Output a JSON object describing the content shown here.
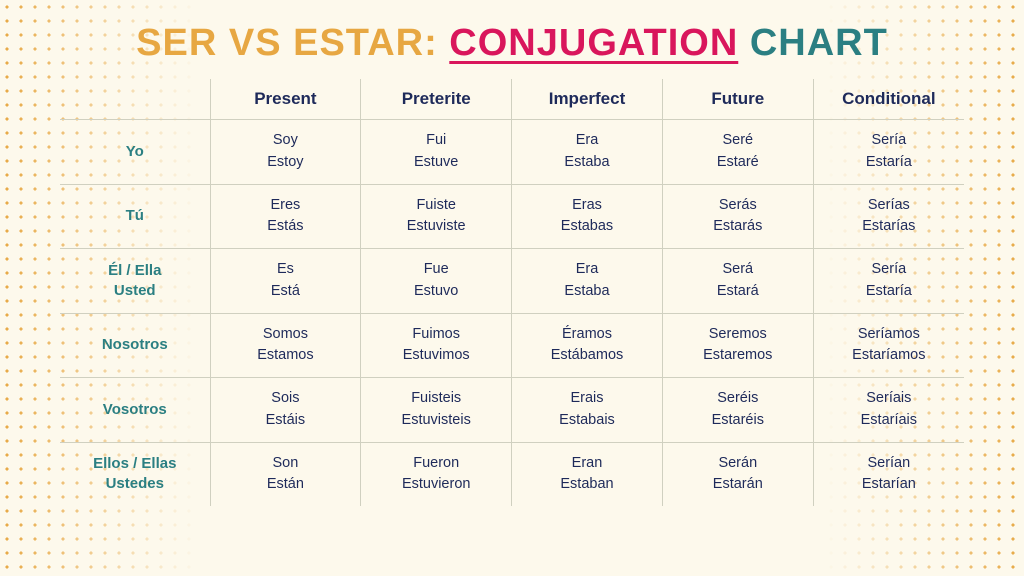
{
  "title": {
    "part1": "SER VS ESTAR: ",
    "part2": "CONJUGATION",
    "part3": " CHART"
  },
  "styling": {
    "background_color": "#fdf9ec",
    "dot_color": "#e7a742",
    "title_color_1": "#e7a742",
    "title_color_2": "#d9165c",
    "title_color_3": "#2b7f82",
    "title_fontsize": 38,
    "header_text_color": "#1e2a5a",
    "header_fontsize": 17,
    "rowheader_text_color": "#2b7f82",
    "rowheader_fontsize": 15,
    "cell_text_color": "#1e2a5a",
    "cell_fontsize": 14.5,
    "grid_color": "#d0d0c0",
    "table_type": "conjugation-grid"
  },
  "columns": [
    "Present",
    "Preterite",
    "Imperfect",
    "Future",
    "Conditional"
  ],
  "rows": [
    {
      "label": "Yo",
      "cells": [
        [
          "Soy",
          "Estoy"
        ],
        [
          "Fui",
          "Estuve"
        ],
        [
          "Era",
          "Estaba"
        ],
        [
          "Seré",
          "Estaré"
        ],
        [
          "Sería",
          "Estaría"
        ]
      ]
    },
    {
      "label": "Tú",
      "cells": [
        [
          "Eres",
          "Estás"
        ],
        [
          "Fuiste",
          "Estuviste"
        ],
        [
          "Eras",
          "Estabas"
        ],
        [
          "Serás",
          "Estarás"
        ],
        [
          "Serías",
          "Estarías"
        ]
      ]
    },
    {
      "label": "Él / Ella\nUsted",
      "cells": [
        [
          "Es",
          "Está"
        ],
        [
          "Fue",
          "Estuvo"
        ],
        [
          "Era",
          "Estaba"
        ],
        [
          "Será",
          "Estará"
        ],
        [
          "Sería",
          "Estaría"
        ]
      ]
    },
    {
      "label": "Nosotros",
      "cells": [
        [
          "Somos",
          "Estamos"
        ],
        [
          "Fuimos",
          "Estuvimos"
        ],
        [
          "Éramos",
          "Estábamos"
        ],
        [
          "Seremos",
          "Estaremos"
        ],
        [
          "Seríamos",
          "Estaríamos"
        ]
      ]
    },
    {
      "label": "Vosotros",
      "cells": [
        [
          "Sois",
          "Estáis"
        ],
        [
          "Fuisteis",
          "Estuvisteis"
        ],
        [
          "Erais",
          "Estabais"
        ],
        [
          "Seréis",
          "Estaréis"
        ],
        [
          "Seríais",
          "Estaríais"
        ]
      ]
    },
    {
      "label": "Ellos / Ellas\nUstedes",
      "cells": [
        [
          "Son",
          "Están"
        ],
        [
          "Fueron",
          "Estuvieron"
        ],
        [
          "Eran",
          "Estaban"
        ],
        [
          "Serán",
          "Estarán"
        ],
        [
          "Serían",
          "Estarían"
        ]
      ]
    }
  ]
}
